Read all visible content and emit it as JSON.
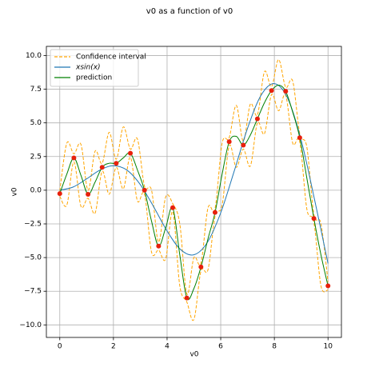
{
  "chart_data": {
    "type": "line",
    "title": "v0 as a function of v0",
    "x_label": "v0",
    "y_label": "v0",
    "xlim": [
      -0.5,
      10.5
    ],
    "ylim": [
      -10.93,
      10.68
    ],
    "xticks": [
      0,
      2,
      4,
      6,
      8,
      10
    ],
    "yticks": [
      {
        "value": -10,
        "label": "−10.0"
      },
      {
        "value": -7.5,
        "label": "−7.5"
      },
      {
        "value": -5,
        "label": "−5.0"
      },
      {
        "value": -2.5,
        "label": "−2.5"
      },
      {
        "value": 0,
        "label": "0.0"
      },
      {
        "value": 2.5,
        "label": "2.5"
      },
      {
        "value": 5,
        "label": "5.0"
      },
      {
        "value": 7.5,
        "label": "7.5"
      },
      {
        "value": 10,
        "label": "10.0"
      }
    ],
    "grid": true,
    "legend": "upper left",
    "x": [
      0,
      0.263,
      0.526,
      0.789,
      1.053,
      1.316,
      1.579,
      1.842,
      2.105,
      2.368,
      2.632,
      2.895,
      3.158,
      3.421,
      3.684,
      3.947,
      4.211,
      4.474,
      4.737,
      5.0,
      5.263,
      5.526,
      5.789,
      6.053,
      6.316,
      6.579,
      6.842,
      7.105,
      7.368,
      7.632,
      7.895,
      8.158,
      8.421,
      8.684,
      8.947,
      9.211,
      9.474,
      9.737,
      10
    ],
    "confidence": {
      "name": "Confidence interval",
      "color": "#ffa500",
      "upper": [
        -0.05,
        3.5,
        2.7,
        3.4,
        0.0,
        2.9,
        2.0,
        4.3,
        2.3,
        4.7,
        3.05,
        3.8,
        0.3,
        0.0,
        -3.85,
        -0.5,
        -1.0,
        -2.5,
        -7.7,
        -5.0,
        -5.4,
        -1.3,
        -1.35,
        3.5,
        3.9,
        6.3,
        3.65,
        6.4,
        5.6,
        8.8,
        7.7,
        9.7,
        7.65,
        8.1,
        4.2,
        3.2,
        -1.8,
        -2.5,
        -6.8
      ],
      "lower": [
        -0.45,
        -1.1,
        2.1,
        -1.2,
        -0.6,
        -1.7,
        1.4,
        -0.3,
        1.7,
        0.1,
        2.45,
        -0.8,
        -0.3,
        -4.6,
        -4.45,
        -5.1,
        -1.6,
        -7.1,
        -8.3,
        -9.6,
        -6.0,
        -5.9,
        -1.95,
        -1.1,
        3.3,
        1.7,
        3.05,
        1.8,
        5.0,
        4.2,
        7.1,
        5.9,
        7.05,
        3.5,
        3.6,
        -1.4,
        -2.4,
        -7.1,
        -7.4
      ]
    },
    "series": [
      {
        "name": "xsin(x)",
        "color": "#1f77b4",
        "x": [
          0,
          0.5,
          1,
          1.5,
          2,
          2.5,
          3,
          3.5,
          4,
          4.5,
          5,
          5.5,
          6,
          6.5,
          7,
          7.5,
          8,
          8.5,
          9,
          9.5,
          10
        ],
        "values": [
          0,
          0.24,
          0.841,
          1.496,
          1.819,
          1.496,
          0.423,
          -1.228,
          -3.027,
          -4.399,
          -4.795,
          -3.88,
          -1.676,
          1.399,
          4.599,
          7.035,
          7.915,
          6.815,
          3.709,
          -0.712,
          -5.44
        ]
      },
      {
        "name": "prediction",
        "color": "#008000",
        "values": [
          -0.25,
          1.2,
          2.4,
          1.1,
          -0.3,
          0.6,
          1.7,
          2.0,
          2.0,
          2.4,
          2.75,
          1.5,
          0.0,
          -2.3,
          -4.15,
          -2.8,
          -1.3,
          -4.8,
          -8.0,
          -7.3,
          -5.7,
          -3.6,
          -1.65,
          1.2,
          3.6,
          4.0,
          3.35,
          4.1,
          5.3,
          6.5,
          7.4,
          7.8,
          7.35,
          5.8,
          3.9,
          0.9,
          -2.1,
          -4.8,
          -7.1
        ]
      }
    ],
    "points": {
      "color": "#e8200c",
      "x": [
        0,
        0.526,
        1.053,
        1.579,
        2.105,
        2.632,
        3.158,
        3.684,
        4.211,
        4.737,
        5.263,
        5.789,
        6.316,
        6.842,
        7.368,
        7.895,
        8.421,
        8.947,
        9.474,
        10
      ],
      "values": [
        -0.25,
        2.4,
        -0.3,
        1.7,
        2.0,
        2.75,
        0.0,
        -4.15,
        -1.3,
        -8.0,
        -5.7,
        -1.65,
        3.6,
        3.35,
        5.3,
        7.4,
        7.35,
        3.9,
        -2.1,
        -7.1
      ]
    }
  }
}
